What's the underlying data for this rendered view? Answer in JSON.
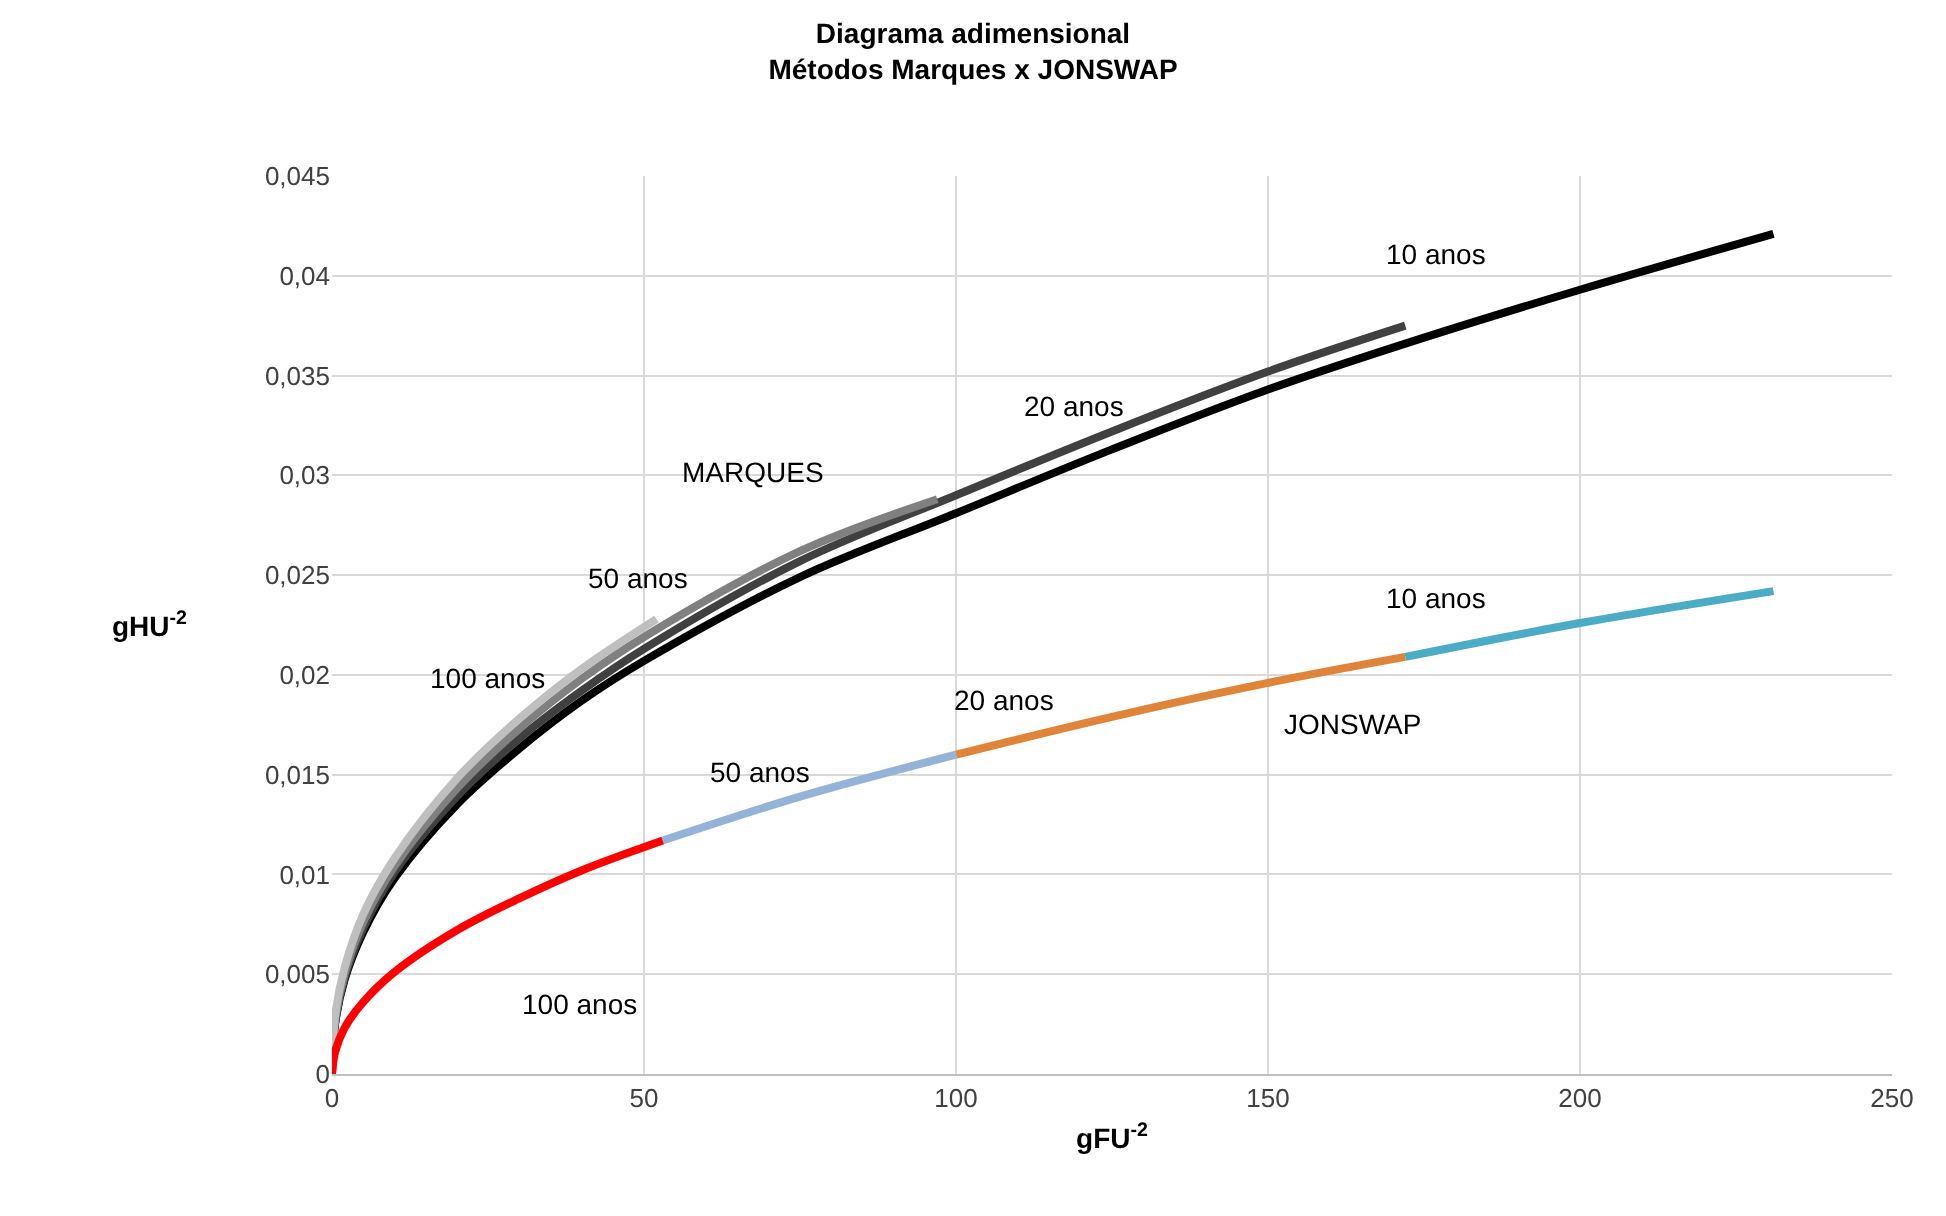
{
  "chart_data": {
    "type": "line",
    "title": "Diagrama adimensional\nMétodos Marques x JONSWAP",
    "xlabel": "gFU$^{-2}$",
    "ylabel": "gHU$^{-2}$",
    "xlim": [
      0,
      250
    ],
    "xticks": [
      0,
      50,
      100,
      150,
      200,
      250
    ],
    "ylim": [
      0,
      0.045
    ],
    "yticks": [
      {
        "value": 0,
        "label": "0"
      },
      {
        "value": 0.005,
        "label": "0,005"
      },
      {
        "value": 0.01,
        "label": "0,01"
      },
      {
        "value": 0.015,
        "label": "0,015"
      },
      {
        "value": 0.02,
        "label": "0,02"
      },
      {
        "value": 0.025,
        "label": "0,025"
      },
      {
        "value": 0.03,
        "label": "0,03"
      },
      {
        "value": 0.035,
        "label": "0,035"
      },
      {
        "value": 0.04,
        "label": "0,04"
      },
      {
        "value": 0.045,
        "label": "0,045"
      }
    ],
    "grid": true,
    "marker": "none",
    "line_style": "solid",
    "series": [
      {
        "color": "#000000",
        "x": [
          0,
          0.5,
          2,
          5,
          10,
          20,
          30,
          40,
          50,
          75,
          100,
          125,
          150,
          175,
          200,
          231
        ],
        "values": [
          0,
          0.0025,
          0.0047,
          0.0071,
          0.0098,
          0.0135,
          0.0163,
          0.0187,
          0.0207,
          0.0249,
          0.0281,
          0.0313,
          0.0343,
          0.0369,
          0.0393,
          0.0421
        ]
      },
      {
        "color": "#404040",
        "x": [
          0,
          0.5,
          2,
          5,
          10,
          20,
          30,
          40,
          50,
          75,
          100,
          125,
          150,
          172
        ],
        "values": [
          0,
          0.0026,
          0.0048,
          0.0073,
          0.0101,
          0.0139,
          0.0168,
          0.0192,
          0.0213,
          0.0257,
          0.029,
          0.0322,
          0.0352,
          0.0375
        ]
      },
      {
        "color": "#808080",
        "x": [
          0,
          0.5,
          2,
          5,
          10,
          20,
          30,
          40,
          50,
          75,
          97
        ],
        "values": [
          0,
          0.0027,
          0.005,
          0.0076,
          0.0104,
          0.0143,
          0.0173,
          0.0198,
          0.0219,
          0.0262,
          0.0288
        ]
      },
      {
        "color": "#bfbfbf",
        "x": [
          0,
          0.5,
          2,
          5,
          10,
          20,
          30,
          40,
          52
        ],
        "values": [
          0,
          0.0029,
          0.0053,
          0.008,
          0.0108,
          0.0148,
          0.0178,
          0.0203,
          0.0228
        ]
      },
      {
        "color": "#4bacc6",
        "x": [
          172,
          200,
          231
        ],
        "values": [
          0.0209,
          0.0226,
          0.0242
        ]
      },
      {
        "color": "#e0843a",
        "x": [
          100,
          125,
          150,
          172
        ],
        "values": [
          0.016,
          0.0179,
          0.0196,
          0.0209
        ]
      },
      {
        "color": "#95b3d7",
        "x": [
          53,
          75,
          100
        ],
        "values": [
          0.0117,
          0.0139,
          0.016
        ]
      },
      {
        "color": "#ff0000",
        "x": [
          0,
          0.5,
          2,
          5,
          10,
          20,
          30,
          40,
          53
        ],
        "values": [
          0,
          0.0011,
          0.0023,
          0.0036,
          0.0051,
          0.0072,
          0.0088,
          0.0102,
          0.0117
        ]
      }
    ],
    "annotations": [
      "10 anos",
      "20 anos",
      "MARQUES",
      "50 anos",
      "100 anos",
      "10 anos",
      "20 anos",
      "JONSWAP",
      "50 anos",
      "100 anos"
    ]
  }
}
